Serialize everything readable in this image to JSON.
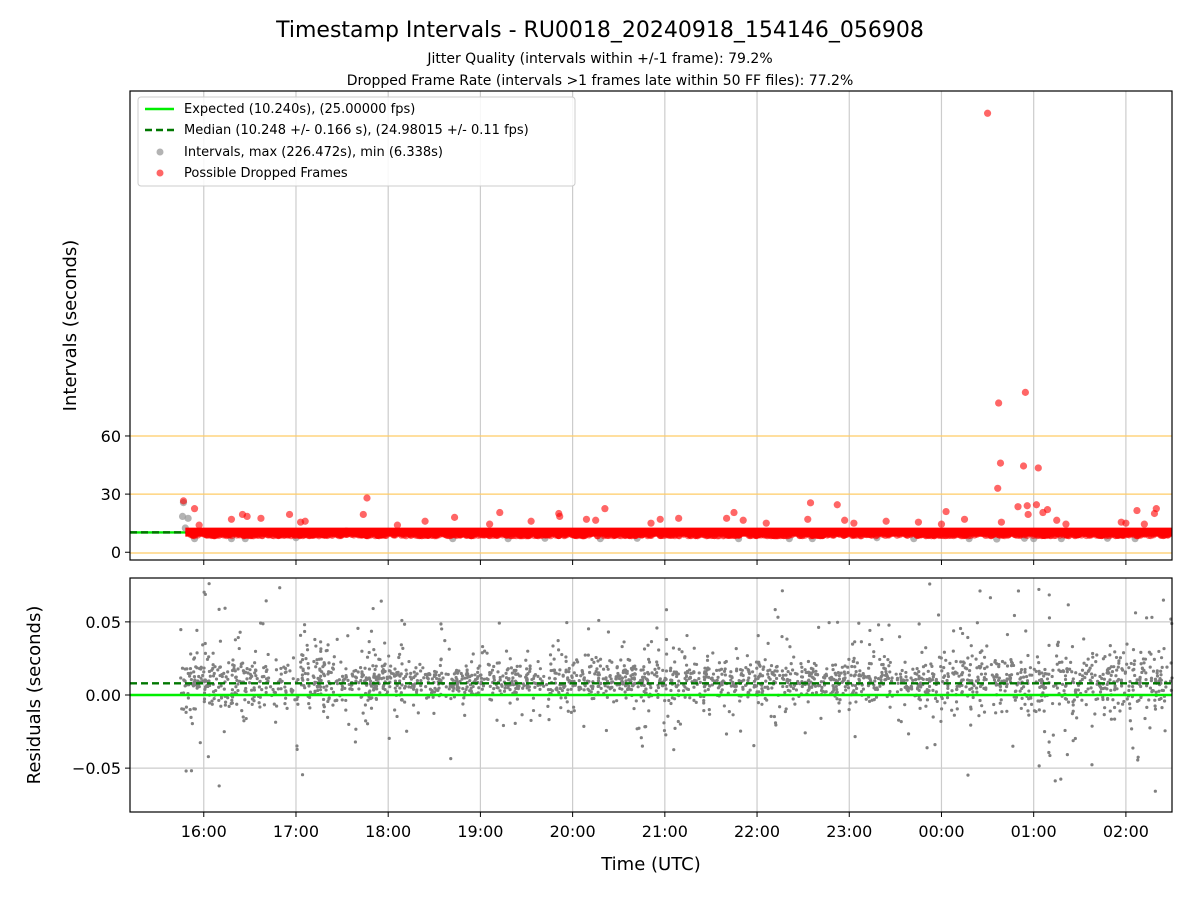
{
  "figure": {
    "title": "Timestamp Intervals - RU0018_20240918_154146_056908",
    "subtitle_1": "Jitter Quality (intervals within +/-1 frame): 79.2%",
    "subtitle_2": "Dropped Frame Rate (intervals >1 frames late within 50 FF files): 77.2%"
  },
  "colors": {
    "expected": "#00ee00",
    "median": "#007700",
    "intervals": "#999999",
    "dropped": "#ff0000",
    "threshold": "#ffcc66",
    "residual": "#808080",
    "grid": "#cccccc"
  },
  "chart_data": [
    {
      "type": "scatter",
      "panel": "top",
      "ylabel": "Intervals (seconds)",
      "x_unit": "UTC time (2024-09-18 to 2024-09-19), plotted as hours since 00:00 on 18 Sep",
      "xlim": [
        15.2,
        26.5
      ],
      "ylim": [
        -4,
        238
      ],
      "y_ticks": [
        0,
        30,
        60
      ],
      "grid": true,
      "legend_position": "upper-left",
      "legend": [
        {
          "label": "Expected (10.240s), (25.00000 fps)",
          "kind": "solid-line"
        },
        {
          "label": "Median (10.248 +/- 0.166 s), (24.98015 +/- 0.11 fps)",
          "kind": "dashed-line"
        },
        {
          "label": "Intervals, max (226.472s), min (6.338s)",
          "kind": "gray-dot"
        },
        {
          "label": "Possible Dropped Frames",
          "kind": "red-dot"
        }
      ],
      "expected_interval": 10.24,
      "median_interval": 10.248,
      "threshold_lines": [
        -0.4,
        30,
        60
      ],
      "baseline_band": {
        "x_start": 15.8,
        "x_end": 26.5,
        "y": 10.4
      },
      "intervals_outliers": [
        {
          "x": 15.78,
          "y": 25.6
        },
        {
          "x": 15.77,
          "y": 18.5
        },
        {
          "x": 15.83,
          "y": 17.5
        },
        {
          "x": 15.8,
          "y": 12.5
        },
        {
          "x": 15.9,
          "y": 7.0
        },
        {
          "x": 16.3,
          "y": 7.0
        },
        {
          "x": 16.45,
          "y": 7.0
        },
        {
          "x": 17.0,
          "y": 7.5
        },
        {
          "x": 18.7,
          "y": 7.0
        },
        {
          "x": 19.3,
          "y": 7.0
        },
        {
          "x": 19.7,
          "y": 7.2
        },
        {
          "x": 20.3,
          "y": 7.0
        },
        {
          "x": 20.7,
          "y": 7.2
        },
        {
          "x": 21.8,
          "y": 7.0
        },
        {
          "x": 22.35,
          "y": 7.0
        },
        {
          "x": 22.6,
          "y": 7.0
        },
        {
          "x": 23.3,
          "y": 7.5
        },
        {
          "x": 23.7,
          "y": 7.0
        },
        {
          "x": 24.3,
          "y": 7.0
        },
        {
          "x": 24.6,
          "y": 6.8
        },
        {
          "x": 24.9,
          "y": 7.2
        },
        {
          "x": 25.0,
          "y": 7.0
        },
        {
          "x": 25.3,
          "y": 7.0
        },
        {
          "x": 25.8,
          "y": 7.2
        },
        {
          "x": 26.1,
          "y": 7.0
        }
      ],
      "dropped_frames": [
        {
          "x": 24.5,
          "y": 226.5
        },
        {
          "x": 24.91,
          "y": 82.5
        },
        {
          "x": 24.62,
          "y": 77.0
        },
        {
          "x": 24.64,
          "y": 46.0
        },
        {
          "x": 24.89,
          "y": 44.5
        },
        {
          "x": 25.05,
          "y": 43.5
        },
        {
          "x": 24.61,
          "y": 33.0
        },
        {
          "x": 17.77,
          "y": 28.0
        },
        {
          "x": 15.78,
          "y": 26.5
        },
        {
          "x": 22.58,
          "y": 25.5
        },
        {
          "x": 22.87,
          "y": 24.5
        },
        {
          "x": 24.93,
          "y": 24.0
        },
        {
          "x": 25.03,
          "y": 24.5
        },
        {
          "x": 25.15,
          "y": 22.0
        },
        {
          "x": 24.83,
          "y": 23.5
        },
        {
          "x": 26.33,
          "y": 22.5
        },
        {
          "x": 15.9,
          "y": 22.5
        },
        {
          "x": 20.35,
          "y": 22.5
        },
        {
          "x": 26.31,
          "y": 20.0
        },
        {
          "x": 25.1,
          "y": 20.5
        },
        {
          "x": 24.94,
          "y": 19.5
        },
        {
          "x": 24.05,
          "y": 21.0
        },
        {
          "x": 26.12,
          "y": 21.5
        },
        {
          "x": 19.21,
          "y": 20.5
        },
        {
          "x": 19.85,
          "y": 20.0
        },
        {
          "x": 17.73,
          "y": 19.5
        },
        {
          "x": 16.93,
          "y": 19.5
        },
        {
          "x": 16.42,
          "y": 19.5
        },
        {
          "x": 21.75,
          "y": 20.5
        },
        {
          "x": 16.47,
          "y": 18.5
        },
        {
          "x": 16.62,
          "y": 17.5
        },
        {
          "x": 16.3,
          "y": 17.0
        },
        {
          "x": 18.72,
          "y": 18.0
        },
        {
          "x": 19.86,
          "y": 18.5
        },
        {
          "x": 20.15,
          "y": 17.0
        },
        {
          "x": 20.25,
          "y": 16.5
        },
        {
          "x": 20.95,
          "y": 17.0
        },
        {
          "x": 21.15,
          "y": 17.5
        },
        {
          "x": 21.67,
          "y": 17.5
        },
        {
          "x": 21.85,
          "y": 16.5
        },
        {
          "x": 22.55,
          "y": 17.0
        },
        {
          "x": 22.95,
          "y": 16.5
        },
        {
          "x": 23.4,
          "y": 16.0
        },
        {
          "x": 23.75,
          "y": 15.5
        },
        {
          "x": 24.25,
          "y": 17.0
        },
        {
          "x": 24.65,
          "y": 15.5
        },
        {
          "x": 25.25,
          "y": 16.5
        },
        {
          "x": 25.95,
          "y": 15.5
        },
        {
          "x": 26.0,
          "y": 15.0
        },
        {
          "x": 17.05,
          "y": 15.5
        },
        {
          "x": 17.1,
          "y": 16.0
        },
        {
          "x": 18.4,
          "y": 16.0
        },
        {
          "x": 19.55,
          "y": 16.0
        },
        {
          "x": 20.85,
          "y": 15.0
        },
        {
          "x": 22.1,
          "y": 15.0
        },
        {
          "x": 23.05,
          "y": 15.0
        },
        {
          "x": 24.0,
          "y": 14.5
        },
        {
          "x": 25.35,
          "y": 14.5
        },
        {
          "x": 26.2,
          "y": 14.5
        },
        {
          "x": 15.95,
          "y": 14.0
        },
        {
          "x": 18.1,
          "y": 14.0
        },
        {
          "x": 19.1,
          "y": 14.5
        }
      ],
      "dense_band": {
        "x_start": 15.85,
        "x_end": 26.5,
        "y_min": 8.5,
        "y_max": 13.5,
        "count": 900
      }
    },
    {
      "type": "scatter",
      "panel": "bottom",
      "ylabel": "Residuals (seconds)",
      "xlabel": "Time (UTC)",
      "x_unit": "UTC time (2024-09-18 to 2024-09-19), plotted as hours since 00:00 on 18 Sep",
      "xlim": [
        15.2,
        26.5
      ],
      "ylim": [
        -0.08,
        0.08
      ],
      "y_ticks": [
        -0.05,
        0.0,
        0.05
      ],
      "y_tick_labels": [
        "−0.05",
        "0.00",
        "0.05"
      ],
      "x_ticks": [
        16,
        17,
        18,
        19,
        20,
        21,
        22,
        23,
        24,
        25,
        26
      ],
      "x_tick_labels": [
        "16:00",
        "17:00",
        "18:00",
        "19:00",
        "20:00",
        "21:00",
        "22:00",
        "23:00",
        "00:00",
        "01:00",
        "02:00"
      ],
      "grid": true,
      "expected_residual": 0.0,
      "median_residual": 0.008,
      "residual_cloud": {
        "x_start": 15.75,
        "x_end": 26.5,
        "center": 0.01,
        "count": 2400
      }
    }
  ]
}
